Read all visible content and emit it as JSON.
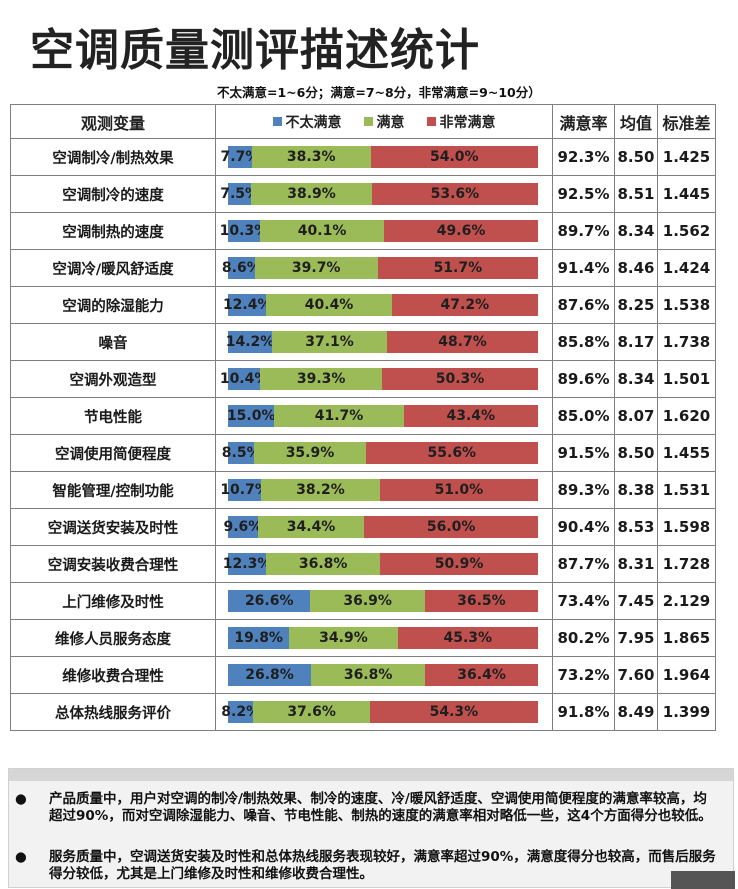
{
  "title": "空调质量测评描述统计",
  "scale_note": "不太满意=1~6分；满意=7~8分，非常满意=9~10分）",
  "table": {
    "headers": {
      "variable": "观测变量",
      "satisfaction": "满意率",
      "mean": "均值",
      "sd": "标准差"
    }
  },
  "legend": [
    {
      "label": "不太满意",
      "color": "#4f81bd"
    },
    {
      "label": "满意",
      "color": "#9bbb59"
    },
    {
      "label": "非常满意",
      "color": "#c0504d"
    }
  ],
  "chart_data": {
    "type": "bar",
    "orientation": "horizontal",
    "stacked": true,
    "xlim": [
      0,
      100
    ],
    "legend_position": "top",
    "categories": [
      "空调制冷/制热效果",
      "空调制冷的速度",
      "空调制热的速度",
      "空调冷/暖风舒适度",
      "空调的除湿能力",
      "噪音",
      "空调外观造型",
      "节电性能",
      "空调使用简便程度",
      "智能管理/控制功能",
      "空调送货安装及时性",
      "空调安装收费合理性",
      "上门维修及时性",
      "维修人员服务态度",
      "维修收费合理性",
      "总体热线服务评价"
    ],
    "series": [
      {
        "name": "不太满意",
        "values": [
          7.7,
          7.5,
          10.3,
          8.6,
          12.4,
          14.2,
          10.4,
          15.0,
          8.5,
          10.7,
          9.6,
          12.3,
          26.6,
          19.8,
          26.8,
          8.2
        ],
        "labels": [
          "7.7%",
          "7.5%",
          "10.3%",
          "8.6%",
          "12.4%",
          "14.2%",
          "10.4%",
          "15.0%",
          "8.5%",
          "10.7%",
          "9.6%",
          "12.3%",
          "26.6%",
          "19.8%",
          "26.8%",
          "8.2%"
        ]
      },
      {
        "name": "满意",
        "values": [
          38.3,
          38.9,
          40.1,
          39.7,
          40.4,
          37.1,
          39.3,
          41.7,
          35.9,
          38.2,
          34.4,
          36.8,
          36.9,
          34.9,
          36.8,
          37.6
        ],
        "labels": [
          "38.3%",
          "38.9%",
          "40.1%",
          "39.7%",
          "40.4%",
          "37.1%",
          "39.3%",
          "41.7%",
          "35.9%",
          "38.2%",
          "34.4%",
          "36.8%",
          "36.9%",
          "34.9%",
          "36.8%",
          "37.6%"
        ]
      },
      {
        "name": "非常满意",
        "values": [
          54.0,
          53.6,
          49.6,
          51.7,
          47.2,
          48.7,
          50.3,
          43.4,
          55.6,
          51.0,
          56.0,
          50.9,
          36.5,
          45.3,
          36.4,
          54.3
        ],
        "labels": [
          "54.0%",
          "53.6%",
          "49.6%",
          "51.7%",
          "47.2%",
          "48.7%",
          "50.3%",
          "43.4%",
          "55.6%",
          "51.0%",
          "56.0%",
          "50.9%",
          "36.5%",
          "45.3%",
          "36.4%",
          "54.3%"
        ]
      }
    ],
    "satisfaction_rate": [
      "92.3%",
      "92.5%",
      "89.7%",
      "91.4%",
      "87.6%",
      "85.8%",
      "89.6%",
      "85.0%",
      "91.5%",
      "89.3%",
      "90.4%",
      "87.7%",
      "73.4%",
      "80.2%",
      "73.2%",
      "91.8%"
    ],
    "mean": [
      "8.50",
      "8.51",
      "8.34",
      "8.46",
      "8.25",
      "8.17",
      "8.34",
      "8.07",
      "8.50",
      "8.38",
      "8.53",
      "8.31",
      "7.45",
      "7.95",
      "7.60",
      "8.49"
    ],
    "sd": [
      "1.425",
      "1.445",
      "1.562",
      "1.424",
      "1.538",
      "1.738",
      "1.501",
      "1.620",
      "1.455",
      "1.531",
      "1.598",
      "1.728",
      "2.129",
      "1.865",
      "1.964",
      "1.399"
    ]
  },
  "summary": {
    "bullet_glyph": "●",
    "points": [
      "产品质量中，用户对空调的制冷/制热效果、制冷的速度、冷/暖风舒适度、空调使用简便程度的满意率较高，均超过90%，而对空调除湿能力、噪音、节电性能、制热的速度的满意率相对略低一些，这4个方面得分也较低。",
      "服务质量中，空调送货安装及时性和总体热线服务表现较好，满意率超过90%，满意度得分也较高，而售后服务得分较低，尤其是上门维修及时性和维修收费合理性。"
    ]
  }
}
